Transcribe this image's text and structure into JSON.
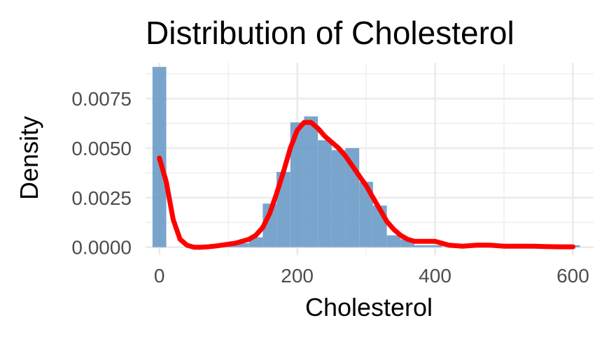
{
  "chart_data": {
    "type": "histogram",
    "title": "Distribution of Cholesterol",
    "xlabel": "Cholesterol",
    "ylabel": "Density",
    "xlim": [
      -20,
      630
    ],
    "ylim": [
      -0.0004,
      0.0093
    ],
    "x_ticks": [
      {
        "value": 0,
        "label": "0"
      },
      {
        "value": 200,
        "label": "200"
      },
      {
        "value": 400,
        "label": "400"
      },
      {
        "value": 600,
        "label": "600"
      }
    ],
    "y_ticks": [
      {
        "value": 0,
        "label": "0.0000"
      },
      {
        "value": 0.0025,
        "label": "0.0025"
      },
      {
        "value": 0.005,
        "label": "0.0050"
      },
      {
        "value": 0.0075,
        "label": "0.0075"
      }
    ],
    "grid": true,
    "bin_width": 20,
    "bins": [
      {
        "x0": -10,
        "x1": 10,
        "density": 0.0091
      },
      {
        "x0": 10,
        "x1": 30,
        "density": 0.0
      },
      {
        "x0": 30,
        "x1": 50,
        "density": 0.0
      },
      {
        "x0": 50,
        "x1": 70,
        "density": 0.0
      },
      {
        "x0": 70,
        "x1": 90,
        "density": 0.0
      },
      {
        "x0": 90,
        "x1": 110,
        "density": 0.0001
      },
      {
        "x0": 110,
        "x1": 130,
        "density": 0.0002
      },
      {
        "x0": 130,
        "x1": 150,
        "density": 0.0005
      },
      {
        "x0": 150,
        "x1": 170,
        "density": 0.0022
      },
      {
        "x0": 170,
        "x1": 190,
        "density": 0.0038
      },
      {
        "x0": 190,
        "x1": 210,
        "density": 0.0063
      },
      {
        "x0": 210,
        "x1": 230,
        "density": 0.0066
      },
      {
        "x0": 230,
        "x1": 250,
        "density": 0.0054
      },
      {
        "x0": 250,
        "x1": 270,
        "density": 0.0049
      },
      {
        "x0": 270,
        "x1": 290,
        "density": 0.005
      },
      {
        "x0": 290,
        "x1": 310,
        "density": 0.0033
      },
      {
        "x0": 310,
        "x1": 330,
        "density": 0.0021
      },
      {
        "x0": 330,
        "x1": 350,
        "density": 0.0006
      },
      {
        "x0": 350,
        "x1": 370,
        "density": 0.0004
      },
      {
        "x0": 370,
        "x1": 390,
        "density": 0.0001
      },
      {
        "x0": 390,
        "x1": 410,
        "density": 0.0001
      },
      {
        "x0": 410,
        "x1": 430,
        "density": 0.0
      },
      {
        "x0": 430,
        "x1": 450,
        "density": 0.0
      },
      {
        "x0": 450,
        "x1": 470,
        "density": 0.0
      },
      {
        "x0": 470,
        "x1": 490,
        "density": 0.0
      },
      {
        "x0": 490,
        "x1": 510,
        "density": 0.0
      },
      {
        "x0": 510,
        "x1": 530,
        "density": 0.0
      },
      {
        "x0": 530,
        "x1": 550,
        "density": 0.0
      },
      {
        "x0": 550,
        "x1": 570,
        "density": 0.0
      },
      {
        "x0": 570,
        "x1": 590,
        "density": 0.0
      },
      {
        "x0": 590,
        "x1": 610,
        "density": 0.0001
      }
    ],
    "density_curve": {
      "x": [
        0,
        10,
        20,
        30,
        40,
        50,
        60,
        70,
        80,
        90,
        100,
        110,
        120,
        130,
        140,
        150,
        160,
        170,
        180,
        190,
        200,
        210,
        220,
        230,
        240,
        250,
        260,
        270,
        280,
        290,
        300,
        310,
        320,
        330,
        340,
        350,
        360,
        370,
        380,
        390,
        400,
        420,
        440,
        460,
        480,
        500,
        520,
        540,
        560,
        580,
        600
      ],
      "y": [
        0.0045,
        0.0033,
        0.0014,
        0.0004,
        0.0001,
        0.0,
        0.0,
        2e-05,
        5e-05,
        0.0001,
        0.00015,
        0.0002,
        0.0003,
        0.0004,
        0.0006,
        0.001,
        0.0017,
        0.0027,
        0.0038,
        0.005,
        0.0059,
        0.0063,
        0.0063,
        0.006,
        0.0056,
        0.0053,
        0.005,
        0.0046,
        0.0041,
        0.0036,
        0.0031,
        0.0025,
        0.0019,
        0.0013,
        0.0009,
        0.0006,
        0.0004,
        0.0003,
        0.0003,
        0.0003,
        0.0003,
        0.0001,
        5e-05,
        0.0001,
        0.0001,
        5e-05,
        5e-05,
        5e-05,
        3e-05,
        2e-05,
        2e-05
      ]
    },
    "colors": {
      "bar_fill": "#6a9bc8",
      "curve": "#ff0000",
      "grid": "#ebebeb",
      "background": "#ffffff"
    }
  }
}
